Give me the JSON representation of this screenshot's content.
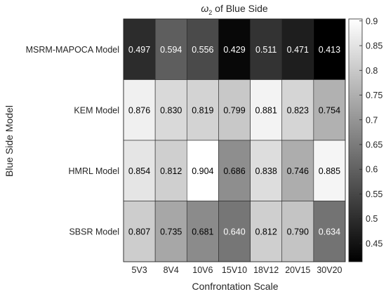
{
  "chart_data": {
    "type": "heatmap",
    "title": "ω₂ of Blue Side",
    "title_base": "ω",
    "title_sub": "2",
    "title_rest": " of Blue Side",
    "xlabel": "Confrontation Scale",
    "ylabel": "Blue Side Model",
    "x_categories": [
      "5V3",
      "8V4",
      "10V6",
      "15V10",
      "18V12",
      "20V15",
      "30V20"
    ],
    "y_categories": [
      "MSRM-MAPOCA Model",
      "KEM Model",
      "HMRL Model",
      "SBSR Model"
    ],
    "values": [
      [
        0.497,
        0.594,
        0.556,
        0.429,
        0.511,
        0.471,
        0.413
      ],
      [
        0.876,
        0.83,
        0.819,
        0.799,
        0.881,
        0.823,
        0.754
      ],
      [
        0.854,
        0.812,
        0.904,
        0.686,
        0.838,
        0.746,
        0.885
      ],
      [
        0.807,
        0.735,
        0.681,
        0.64,
        0.812,
        0.79,
        0.634
      ]
    ],
    "labels": [
      [
        "0.497",
        "0.594",
        "0.556",
        "0.429",
        "0.511",
        "0.471",
        "0.413"
      ],
      [
        "0.876",
        "0.830",
        "0.819",
        "0.799",
        "0.881",
        "0.823",
        "0.754"
      ],
      [
        "0.854",
        "0.812",
        "0.904",
        "0.686",
        "0.838",
        "0.746",
        "0.885"
      ],
      [
        "0.807",
        "0.735",
        "0.681",
        "0.640",
        "0.812",
        "0.790",
        "0.634"
      ]
    ],
    "colormap": "gray",
    "color_min": 0.413,
    "color_max": 0.904,
    "colorbar_ticks": [
      0.45,
      0.5,
      0.55,
      0.6,
      0.65,
      0.7,
      0.75,
      0.8,
      0.85,
      0.9
    ],
    "colorbar_tick_labels": [
      "0.45",
      "0.5",
      "0.55",
      "0.6",
      "0.65",
      "0.7",
      "0.75",
      "0.8",
      "0.85",
      "0.9"
    ],
    "colorbar_position": "right",
    "grid": false
  }
}
